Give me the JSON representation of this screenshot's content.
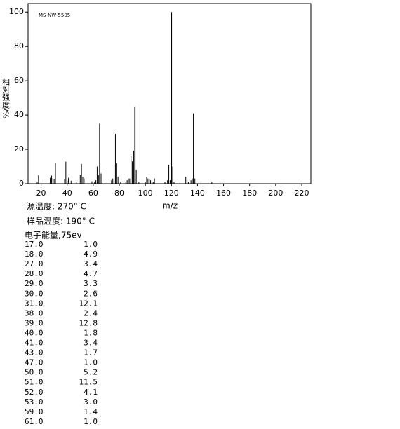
{
  "chart_data": {
    "type": "stem",
    "annotation": "MS-NW-5505",
    "x_label": "m/z",
    "y_label": "相对强度/%",
    "x": [
      17,
      18,
      27,
      28,
      29,
      30,
      31,
      38,
      39,
      40,
      41,
      43,
      47,
      50,
      51,
      52,
      53,
      59,
      61,
      62,
      63,
      64,
      65,
      66,
      69,
      74,
      75,
      76,
      77,
      78,
      79,
      81,
      85,
      86,
      87,
      88,
      89,
      90,
      91,
      92,
      93,
      95,
      100,
      101,
      102,
      103,
      104,
      105,
      106,
      107,
      115,
      117,
      118,
      119,
      120,
      121,
      122,
      131,
      132,
      133,
      135,
      136,
      137,
      138,
      151
    ],
    "values": [
      1.0,
      4.9,
      3.4,
      4.7,
      3.3,
      2.6,
      12.1,
      2.4,
      12.8,
      1.8,
      3.4,
      1.7,
      1.0,
      5.2,
      11.5,
      4.1,
      3.0,
      1.4,
      1.0,
      2,
      10,
      5,
      35,
      6,
      1,
      2,
      3,
      3,
      29,
      12,
      4,
      1,
      1,
      2,
      3,
      3,
      16,
      13,
      19,
      45,
      8,
      1,
      1,
      4,
      3,
      2.5,
      2,
      1,
      1,
      3,
      1,
      2,
      11,
      2,
      100,
      10,
      1,
      4,
      2,
      1,
      2,
      3,
      41,
      3,
      1
    ],
    "color": "#000000",
    "xlim": [
      10,
      227
    ],
    "xticks": [
      20,
      40,
      60,
      80,
      100,
      120,
      140,
      160,
      180,
      200,
      220
    ],
    "ylim": [
      0,
      105
    ],
    "yticks": [
      0,
      20,
      40,
      60,
      80,
      100
    ]
  },
  "conditions": {
    "source_temperature": "源温度: 270° C",
    "sample_temperature": "样品温度: 190° C",
    "electron_energy": "电子能量,75ev"
  },
  "table": {
    "rows": [
      [
        "17.0",
        "1.0"
      ],
      [
        "18.0",
        "4.9"
      ],
      [
        "27.0",
        "3.4"
      ],
      [
        "28.0",
        "4.7"
      ],
      [
        "29.0",
        "3.3"
      ],
      [
        "30.0",
        "2.6"
      ],
      [
        "31.0",
        "12.1"
      ],
      [
        "38.0",
        "2.4"
      ],
      [
        "39.0",
        "12.8"
      ],
      [
        "40.0",
        "1.8"
      ],
      [
        "41.0",
        "3.4"
      ],
      [
        "43.0",
        "1.7"
      ],
      [
        "47.0",
        "1.0"
      ],
      [
        "50.0",
        "5.2"
      ],
      [
        "51.0",
        "11.5"
      ],
      [
        "52.0",
        "4.1"
      ],
      [
        "53.0",
        "3.0"
      ],
      [
        "59.0",
        "1.4"
      ],
      [
        "61.0",
        "1.0"
      ]
    ]
  }
}
